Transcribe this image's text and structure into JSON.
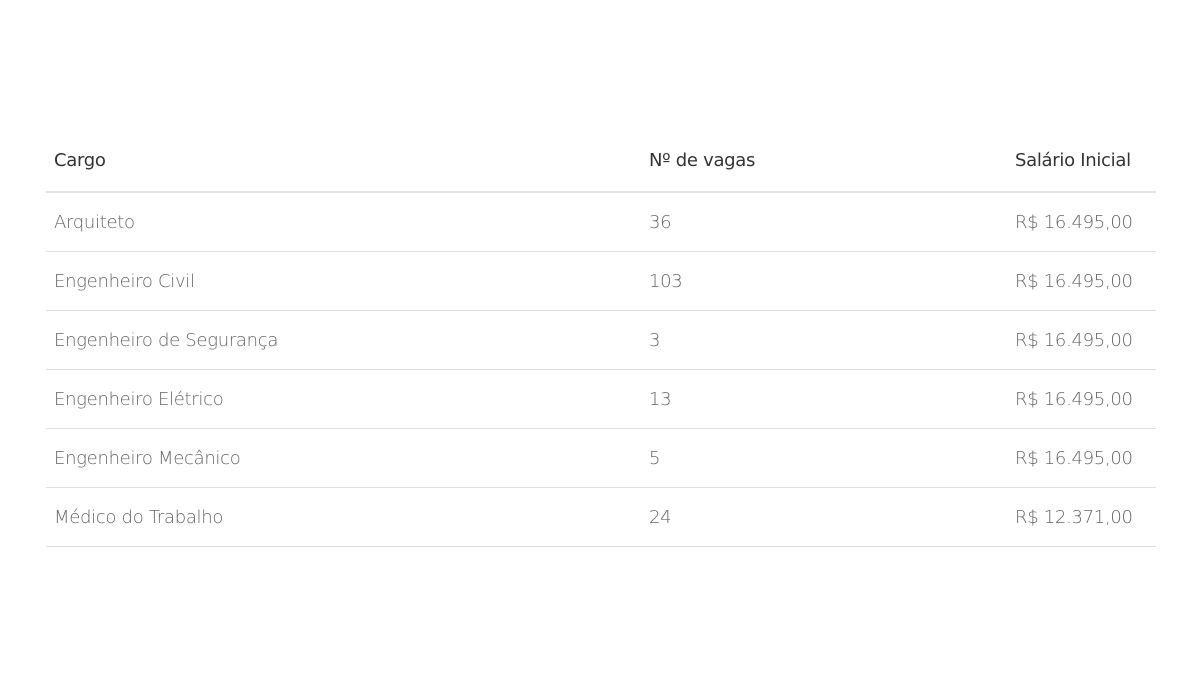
{
  "table": {
    "headers": [
      "Cargo",
      "Nº de vagas",
      "Salário Inicial"
    ],
    "rows": [
      [
        "Arquiteto",
        "36",
        "R$ 16.495,00"
      ],
      [
        "Engenheiro Civil",
        "103",
        "R$ 16.495,00"
      ],
      [
        "Engenheiro de Segurança",
        "3",
        "R$ 16.495,00"
      ],
      [
        "Engenheiro Elétrico",
        "13",
        "R$ 16.495,00"
      ],
      [
        "Engenheiro Mecânico",
        "5",
        "R$ 16.495,00"
      ],
      [
        "Médico do Trabalho",
        "24",
        "R$ 12.371,00"
      ]
    ]
  }
}
